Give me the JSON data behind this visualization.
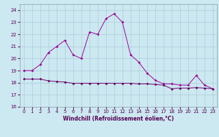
{
  "xlabel": "Windchill (Refroidissement éolien,°C)",
  "bg_color": "#cce8f0",
  "grid_color": "#aaccdd",
  "line_color1": "#990099",
  "line_color2": "#660066",
  "xlim_min": -0.5,
  "xlim_max": 23.5,
  "ylim_min": 16,
  "ylim_max": 24.5,
  "yticks": [
    16,
    17,
    18,
    19,
    20,
    21,
    22,
    23,
    24
  ],
  "xticks": [
    0,
    1,
    2,
    3,
    4,
    5,
    6,
    7,
    8,
    9,
    10,
    11,
    12,
    13,
    14,
    15,
    16,
    17,
    18,
    19,
    20,
    21,
    22,
    23
  ],
  "curve1_x": [
    0,
    1,
    2,
    3,
    4,
    5,
    6,
    7,
    8,
    9,
    10,
    11,
    12,
    13,
    14,
    15,
    16,
    17,
    18,
    19,
    20,
    21,
    22,
    23
  ],
  "curve1_y": [
    19.0,
    19.0,
    19.5,
    20.5,
    21.0,
    21.5,
    20.3,
    20.0,
    22.2,
    22.0,
    23.3,
    23.7,
    23.0,
    20.3,
    19.7,
    18.8,
    18.2,
    17.9,
    17.9,
    17.8,
    17.8,
    18.6,
    17.8,
    17.5
  ],
  "curve2_x": [
    0,
    1,
    2,
    3,
    4,
    5,
    6,
    7,
    8,
    9,
    10,
    11,
    12,
    13,
    14,
    15,
    16,
    17,
    18,
    19,
    20,
    21,
    22,
    23
  ],
  "curve2_y": [
    18.3,
    18.3,
    18.3,
    18.15,
    18.1,
    18.05,
    17.95,
    17.95,
    17.95,
    17.95,
    17.95,
    17.95,
    17.95,
    17.95,
    17.9,
    17.9,
    17.85,
    17.8,
    17.5,
    17.55,
    17.55,
    17.6,
    17.55,
    17.5
  ],
  "xlabel_fontsize": 5.5,
  "tick_fontsize": 5,
  "xlabel_color": "#550055",
  "tick_color": "#550055"
}
